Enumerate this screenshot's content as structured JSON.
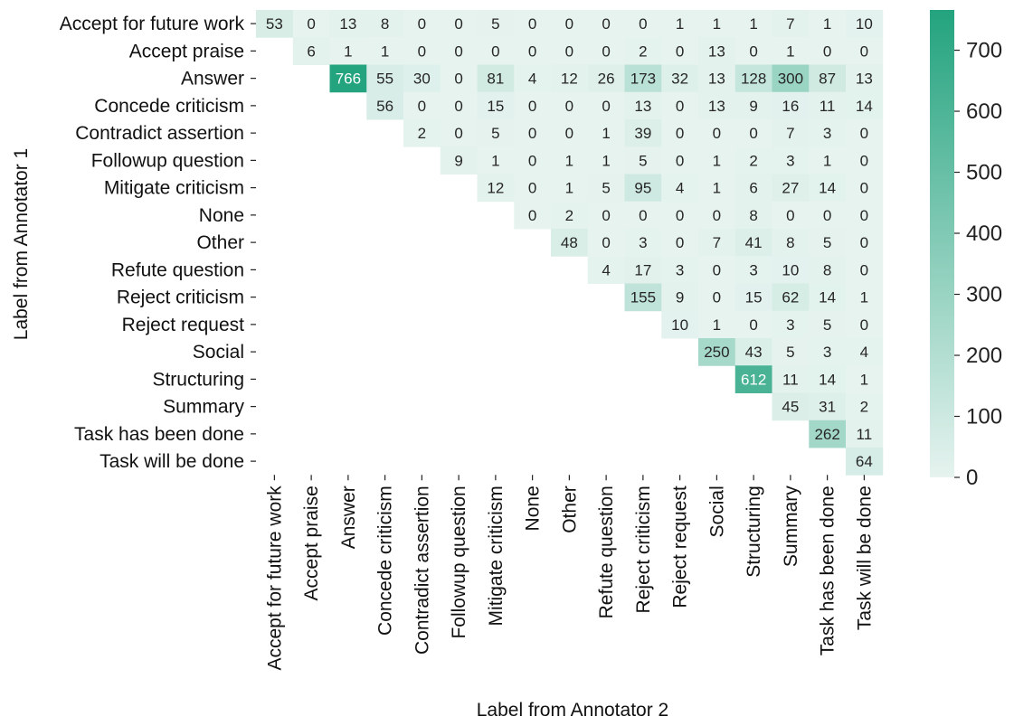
{
  "chart_data": {
    "type": "heatmap",
    "title": "",
    "xlabel": "Label from Annotator 2",
    "ylabel": "Label from Annotator 1",
    "rows": [
      "Accept for future work",
      "Accept praise",
      "Answer",
      "Concede criticism",
      "Contradict assertion",
      "Followup question",
      "Mitigate criticism",
      "None",
      "Other",
      "Refute question",
      "Reject criticism",
      "Reject request",
      "Social",
      "Structuring",
      "Summary",
      "Task has been done",
      "Task will be done"
    ],
    "columns": [
      "Accept for future work",
      "Accept praise",
      "Answer",
      "Concede criticism",
      "Contradict assertion",
      "Followup question",
      "Mitigate criticism",
      "None",
      "Other",
      "Refute question",
      "Reject criticism",
      "Reject request",
      "Social",
      "Structuring",
      "Summary",
      "Task has been done",
      "Task will be done"
    ],
    "values": [
      [
        53,
        0,
        13,
        8,
        0,
        0,
        5,
        0,
        0,
        0,
        0,
        1,
        1,
        1,
        7,
        1,
        10
      ],
      [
        null,
        6,
        1,
        1,
        0,
        0,
        0,
        0,
        0,
        0,
        2,
        0,
        13,
        0,
        1,
        0,
        0
      ],
      [
        null,
        null,
        766,
        55,
        30,
        0,
        81,
        4,
        12,
        26,
        173,
        32,
        13,
        128,
        300,
        87,
        13
      ],
      [
        null,
        null,
        null,
        56,
        0,
        0,
        15,
        0,
        0,
        0,
        13,
        0,
        13,
        9,
        16,
        11,
        14
      ],
      [
        null,
        null,
        null,
        null,
        2,
        0,
        5,
        0,
        0,
        1,
        39,
        0,
        0,
        0,
        7,
        3,
        0
      ],
      [
        null,
        null,
        null,
        null,
        null,
        9,
        1,
        0,
        1,
        1,
        5,
        0,
        1,
        2,
        3,
        1,
        0
      ],
      [
        null,
        null,
        null,
        null,
        null,
        null,
        12,
        0,
        1,
        5,
        95,
        4,
        1,
        6,
        27,
        14,
        0
      ],
      [
        null,
        null,
        null,
        null,
        null,
        null,
        null,
        0,
        2,
        0,
        0,
        0,
        0,
        8,
        0,
        0,
        0
      ],
      [
        null,
        null,
        null,
        null,
        null,
        null,
        null,
        null,
        48,
        0,
        3,
        0,
        7,
        41,
        8,
        5,
        0
      ],
      [
        null,
        null,
        null,
        null,
        null,
        null,
        null,
        null,
        null,
        4,
        17,
        3,
        0,
        3,
        10,
        8,
        0
      ],
      [
        null,
        null,
        null,
        null,
        null,
        null,
        null,
        null,
        null,
        null,
        155,
        9,
        0,
        15,
        62,
        14,
        1
      ],
      [
        null,
        null,
        null,
        null,
        null,
        null,
        null,
        null,
        null,
        null,
        null,
        10,
        1,
        0,
        3,
        5,
        0
      ],
      [
        null,
        null,
        null,
        null,
        null,
        null,
        null,
        null,
        null,
        null,
        null,
        null,
        250,
        43,
        5,
        3,
        4
      ],
      [
        null,
        null,
        null,
        null,
        null,
        null,
        null,
        null,
        null,
        null,
        null,
        null,
        null,
        612,
        11,
        14,
        1
      ],
      [
        null,
        null,
        null,
        null,
        null,
        null,
        null,
        null,
        null,
        null,
        null,
        null,
        null,
        null,
        45,
        31,
        2
      ],
      [
        null,
        null,
        null,
        null,
        null,
        null,
        null,
        null,
        null,
        null,
        null,
        null,
        null,
        null,
        null,
        262,
        11
      ],
      [
        null,
        null,
        null,
        null,
        null,
        null,
        null,
        null,
        null,
        null,
        null,
        null,
        null,
        null,
        null,
        null,
        64
      ]
    ],
    "color_scale": {
      "min": 0,
      "max": 766,
      "low_color": "#e6f3ef",
      "high_color": "#23a37e",
      "ticks": [
        0,
        100,
        200,
        300,
        400,
        500,
        600,
        700
      ]
    },
    "legend": "right"
  }
}
